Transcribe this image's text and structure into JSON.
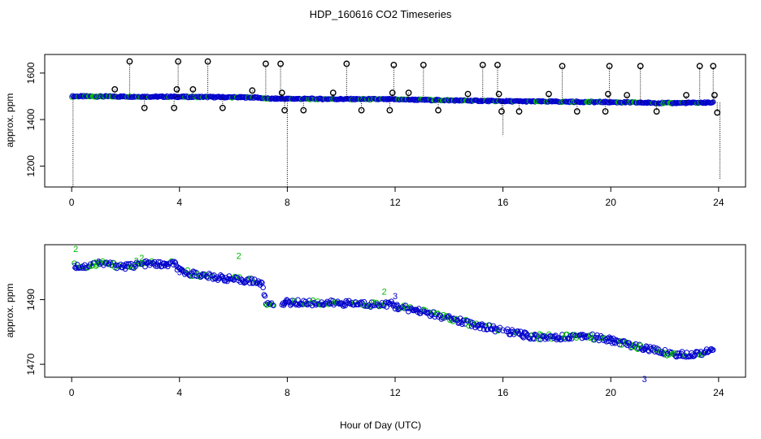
{
  "chart_data": {
    "type": "scatter",
    "title": "HDP_160616  CO2 Timeseries",
    "xlabel": "Hour of Day (UTC)",
    "colors": {
      "valid": "#0000cc",
      "flag2": "#00bb00",
      "outlier": "#000000"
    },
    "panels": [
      {
        "name": "full-range",
        "ylabel": "approx. ppm",
        "xlim": [
          -1,
          25
        ],
        "ylim": [
          1110,
          1680
        ],
        "xticks": [
          0,
          4,
          8,
          12,
          16,
          20,
          24
        ],
        "yticks": [
          1200,
          1400,
          1600
        ],
        "baseline": [
          [
            0,
            1500
          ],
          [
            2,
            1499
          ],
          [
            4,
            1498
          ],
          [
            6.9,
            1495
          ],
          [
            7.2,
            1490
          ],
          [
            12,
            1487
          ],
          [
            16,
            1479
          ],
          [
            20,
            1475
          ],
          [
            22,
            1471
          ],
          [
            23.8,
            1473
          ]
        ],
        "outliers": [
          {
            "x": 1.6,
            "y": 1530
          },
          {
            "x": 2.15,
            "y": 1650
          },
          {
            "x": 2.7,
            "y": 1450
          },
          {
            "x": 3.8,
            "y": 1450
          },
          {
            "x": 3.9,
            "y": 1530
          },
          {
            "x": 3.95,
            "y": 1650
          },
          {
            "x": 4.5,
            "y": 1530
          },
          {
            "x": 5.05,
            "y": 1650
          },
          {
            "x": 5.6,
            "y": 1450
          },
          {
            "x": 6.7,
            "y": 1525
          },
          {
            "x": 7.2,
            "y": 1640
          },
          {
            "x": 7.75,
            "y": 1640
          },
          {
            "x": 7.8,
            "y": 1515
          },
          {
            "x": 7.9,
            "y": 1440
          },
          {
            "x": 8.6,
            "y": 1440
          },
          {
            "x": 9.7,
            "y": 1515
          },
          {
            "x": 10.2,
            "y": 1640
          },
          {
            "x": 10.75,
            "y": 1440
          },
          {
            "x": 11.8,
            "y": 1440
          },
          {
            "x": 11.9,
            "y": 1515
          },
          {
            "x": 11.95,
            "y": 1635
          },
          {
            "x": 12.5,
            "y": 1515
          },
          {
            "x": 13.05,
            "y": 1635
          },
          {
            "x": 13.6,
            "y": 1440
          },
          {
            "x": 14.7,
            "y": 1510
          },
          {
            "x": 15.25,
            "y": 1635
          },
          {
            "x": 15.8,
            "y": 1635
          },
          {
            "x": 15.85,
            "y": 1510
          },
          {
            "x": 15.95,
            "y": 1435
          },
          {
            "x": 16.6,
            "y": 1435
          },
          {
            "x": 17.7,
            "y": 1510
          },
          {
            "x": 18.2,
            "y": 1630
          },
          {
            "x": 18.75,
            "y": 1435
          },
          {
            "x": 19.8,
            "y": 1435
          },
          {
            "x": 19.9,
            "y": 1510
          },
          {
            "x": 19.95,
            "y": 1630
          },
          {
            "x": 20.6,
            "y": 1505
          },
          {
            "x": 21.1,
            "y": 1630
          },
          {
            "x": 21.7,
            "y": 1435
          },
          {
            "x": 22.8,
            "y": 1505
          },
          {
            "x": 23.3,
            "y": 1630
          },
          {
            "x": 23.8,
            "y": 1630
          },
          {
            "x": 23.85,
            "y": 1505
          },
          {
            "x": 23.95,
            "y": 1430
          }
        ],
        "dips": [
          {
            "x": 0.05,
            "y": 1110
          },
          {
            "x": 8.0,
            "y": 1110
          },
          {
            "x": 16.0,
            "y": 1330
          },
          {
            "x": 24.05,
            "y": 1140
          }
        ]
      },
      {
        "name": "zoomed",
        "ylabel": "approx. ppm",
        "xlim": [
          -1,
          25
        ],
        "ylim": [
          1466,
          1507
        ],
        "xticks": [
          0,
          4,
          8,
          12,
          16,
          20,
          24
        ],
        "yticks": [
          1470,
          1490
        ],
        "baseline": [
          [
            0.1,
            1500.5
          ],
          [
            0.5,
            1500.2
          ],
          [
            1,
            1501.4
          ],
          [
            1.5,
            1500.8
          ],
          [
            2,
            1500.2
          ],
          [
            2.5,
            1500.9
          ],
          [
            3,
            1501.2
          ],
          [
            3.5,
            1500.6
          ],
          [
            3.8,
            1501.4
          ],
          [
            4,
            1498.8
          ],
          [
            5,
            1497.3
          ],
          [
            6,
            1496.3
          ],
          [
            6.9,
            1495.6
          ],
          [
            7.1,
            1494.3
          ],
          [
            7.2,
            1488.6
          ],
          [
            7.6,
            1489.2
          ],
          [
            8,
            1489.1
          ],
          [
            9,
            1489.0
          ],
          [
            10,
            1488.9
          ],
          [
            11,
            1488.6
          ],
          [
            11.9,
            1488.6
          ],
          [
            12,
            1487.9
          ],
          [
            13,
            1486.4
          ],
          [
            14,
            1484.1
          ],
          [
            15,
            1482.2
          ],
          [
            15.8,
            1480.8
          ],
          [
            16.1,
            1480.3
          ],
          [
            17,
            1478.7
          ],
          [
            18,
            1478.4
          ],
          [
            19,
            1479.0
          ],
          [
            19.6,
            1478.0
          ],
          [
            20,
            1477.5
          ],
          [
            21,
            1475.4
          ],
          [
            22,
            1473.7
          ],
          [
            22.5,
            1473.0
          ],
          [
            23,
            1473.2
          ],
          [
            23.8,
            1474.2
          ]
        ],
        "gaps": [
          [
            7.5,
            7.8
          ],
          [
            15.9,
            16.1
          ]
        ],
        "labels": [
          {
            "x": 0.15,
            "y": 1505.8,
            "text": "2",
            "color": "flag2"
          },
          {
            "x": 2.4,
            "y": 1502.1,
            "text": "2",
            "color": "flag2"
          },
          {
            "x": 2.6,
            "y": 1503.0,
            "text": "2",
            "color": "flag2"
          },
          {
            "x": 6.2,
            "y": 1503.6,
            "text": "2",
            "color": "flag2"
          },
          {
            "x": 11.6,
            "y": 1492.5,
            "text": "2",
            "color": "flag2"
          },
          {
            "x": 0.1,
            "y": 1500.4,
            "text": "3",
            "color": "valid"
          },
          {
            "x": 1.0,
            "y": 1501.8,
            "text": "3",
            "color": "valid"
          },
          {
            "x": 4.0,
            "y": 1498.6,
            "text": "3",
            "color": "valid"
          },
          {
            "x": 7.9,
            "y": 1489.2,
            "text": "3",
            "color": "valid"
          },
          {
            "x": 12.0,
            "y": 1491.1,
            "text": "3",
            "color": "valid"
          },
          {
            "x": 12.1,
            "y": 1488.0,
            "text": "3",
            "color": "valid"
          },
          {
            "x": 16.0,
            "y": 1480.6,
            "text": "3",
            "color": "valid"
          },
          {
            "x": 20.0,
            "y": 1477.3,
            "text": "3",
            "color": "valid"
          },
          {
            "x": 21.25,
            "y": 1465.5,
            "text": "3",
            "color": "valid"
          }
        ]
      }
    ]
  }
}
